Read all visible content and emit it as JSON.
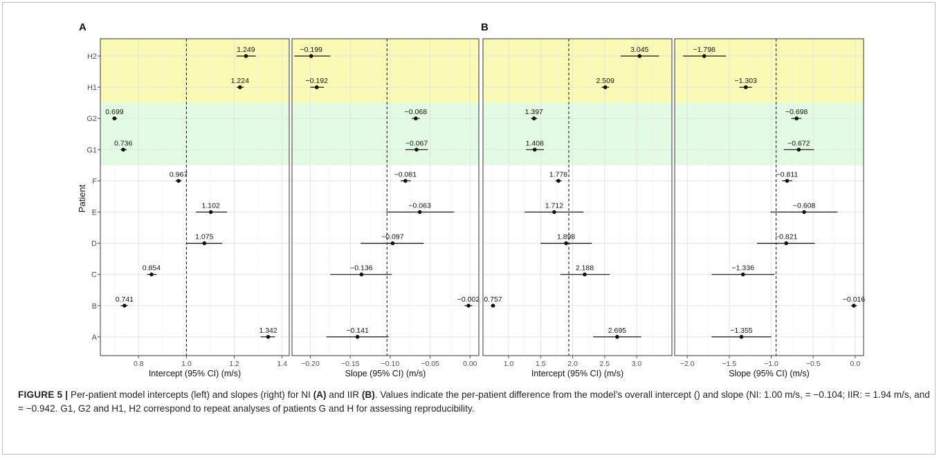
{
  "panel_letters": [
    "A",
    "B"
  ],
  "y_axis_title": "Patient",
  "patients": [
    "H2",
    "H1",
    "G2",
    "G1",
    "F",
    "E",
    "D",
    "C",
    "B",
    "A"
  ],
  "colors": {
    "yellow_band": "#fafab4",
    "green_band": "#e2fbe2",
    "point": "#111111",
    "grid": "#ebebeb"
  },
  "caption": {
    "label": "FIGURE 5 |",
    "part1": " Per-patient model intercepts (left) and slopes (right) for NI ",
    "a": "(A)",
    "part2": " and IIR ",
    "b": "(B)",
    "part3": ". Values indicate the per-patient difference from the model’s overall intercept () and slope (NI: 1.00 m/s, = −0.104; IIR: = 1.94 m/s, and = −0.942. G1, G2 and H1, H2 correspond to repeat analyses of patients G and H for assessing reproducibility."
  },
  "chart_data": [
    {
      "type": "scatter",
      "panel": "A",
      "xlabel": "Intercept (95% CI) (m/s)",
      "xlim": [
        0.64,
        1.43
      ],
      "xticks": [
        0.8,
        1.0,
        1.2,
        1.4
      ],
      "xtick_labels": [
        "0.8",
        "1.0",
        "1.2",
        "1.4"
      ],
      "reference_line": 1.0,
      "points": [
        {
          "patient": "H2",
          "value": 1.249,
          "lo": 1.21,
          "hi": 1.29,
          "label": "1.249"
        },
        {
          "patient": "H1",
          "value": 1.224,
          "lo": 1.21,
          "hi": 1.24,
          "label": "1.224"
        },
        {
          "patient": "G2",
          "value": 0.699,
          "lo": 0.69,
          "hi": 0.71,
          "label": "0.699"
        },
        {
          "patient": "G1",
          "value": 0.736,
          "lo": 0.725,
          "hi": 0.75,
          "label": "0.736"
        },
        {
          "patient": "F",
          "value": 0.967,
          "lo": 0.955,
          "hi": 0.98,
          "label": "0.967"
        },
        {
          "patient": "E",
          "value": 1.102,
          "lo": 1.04,
          "hi": 1.17,
          "label": "1.102"
        },
        {
          "patient": "D",
          "value": 1.075,
          "lo": 1.0,
          "hi": 1.15,
          "label": "1.075"
        },
        {
          "patient": "C",
          "value": 0.854,
          "lo": 0.835,
          "hi": 0.875,
          "label": "0.854"
        },
        {
          "patient": "B",
          "value": 0.741,
          "lo": 0.725,
          "hi": 0.755,
          "label": "0.741"
        },
        {
          "patient": "A",
          "value": 1.342,
          "lo": 1.31,
          "hi": 1.37,
          "label": "1.342"
        }
      ]
    },
    {
      "type": "scatter",
      "panel": "A",
      "xlabel": "Slope (95% CI) (m/s)",
      "xlim": [
        -0.223,
        0.011
      ],
      "xticks": [
        -0.2,
        -0.15,
        -0.1,
        -0.05,
        0.0
      ],
      "xtick_labels": [
        "−0.20",
        "−0.15",
        "−0.10",
        "−0.05",
        "0.00"
      ],
      "reference_line": -0.104,
      "points": [
        {
          "patient": "H2",
          "value": -0.199,
          "lo": -0.22,
          "hi": -0.175,
          "label": "−0.199"
        },
        {
          "patient": "H1",
          "value": -0.192,
          "lo": -0.2,
          "hi": -0.183,
          "label": "−0.192"
        },
        {
          "patient": "G2",
          "value": -0.068,
          "lo": -0.073,
          "hi": -0.063,
          "label": "−0.068"
        },
        {
          "patient": "G1",
          "value": -0.067,
          "lo": -0.081,
          "hi": -0.053,
          "label": "−0.067"
        },
        {
          "patient": "F",
          "value": -0.081,
          "lo": -0.087,
          "hi": -0.074,
          "label": "−0.081"
        },
        {
          "patient": "E",
          "value": -0.063,
          "lo": -0.105,
          "hi": -0.02,
          "label": "−0.063"
        },
        {
          "patient": "D",
          "value": -0.097,
          "lo": -0.137,
          "hi": -0.058,
          "label": "−0.097"
        },
        {
          "patient": "C",
          "value": -0.136,
          "lo": -0.175,
          "hi": -0.098,
          "label": "−0.136"
        },
        {
          "patient": "B",
          "value": -0.002,
          "lo": -0.007,
          "hi": 0.003,
          "label": "−0.002"
        },
        {
          "patient": "A",
          "value": -0.141,
          "lo": -0.18,
          "hi": -0.102,
          "label": "−0.141"
        }
      ]
    },
    {
      "type": "scatter",
      "panel": "B",
      "xlabel": "Intercept (95% CI) (m/s)",
      "xlim": [
        0.6,
        3.55
      ],
      "xticks": [
        1.0,
        1.5,
        2.0,
        2.5,
        3.0
      ],
      "xtick_labels": [
        "1.0",
        "1.5",
        "2.0",
        "2.5",
        "3.0"
      ],
      "reference_line": 1.94,
      "points": [
        {
          "patient": "H2",
          "value": 3.045,
          "lo": 2.75,
          "hi": 3.35,
          "label": "3.045"
        },
        {
          "patient": "H1",
          "value": 2.509,
          "lo": 2.45,
          "hi": 2.57,
          "label": "2.509"
        },
        {
          "patient": "G2",
          "value": 1.397,
          "lo": 1.35,
          "hi": 1.45,
          "label": "1.397"
        },
        {
          "patient": "G1",
          "value": 1.408,
          "lo": 1.27,
          "hi": 1.55,
          "label": "1.408"
        },
        {
          "patient": "F",
          "value": 1.778,
          "lo": 1.73,
          "hi": 1.83,
          "label": "1.778"
        },
        {
          "patient": "E",
          "value": 1.712,
          "lo": 1.25,
          "hi": 2.17,
          "label": "1.712"
        },
        {
          "patient": "D",
          "value": 1.898,
          "lo": 1.5,
          "hi": 2.3,
          "label": "1.898"
        },
        {
          "patient": "C",
          "value": 2.188,
          "lo": 1.81,
          "hi": 2.58,
          "label": "2.188"
        },
        {
          "patient": "B",
          "value": 0.757,
          "lo": 0.72,
          "hi": 0.79,
          "label": "0.757"
        },
        {
          "patient": "A",
          "value": 2.695,
          "lo": 2.32,
          "hi": 3.07,
          "label": "2.695"
        }
      ]
    },
    {
      "type": "scatter",
      "panel": "B",
      "xlabel": "Slope (95% CI) (m/s)",
      "xlim": [
        -2.15,
        0.1
      ],
      "xticks": [
        -2.0,
        -1.5,
        -1.0,
        -0.5,
        0.0
      ],
      "xtick_labels": [
        "−2.0",
        "−1.5",
        "−1.0",
        "−0.5",
        "0.0"
      ],
      "reference_line": -0.942,
      "points": [
        {
          "patient": "H2",
          "value": -1.798,
          "lo": -2.05,
          "hi": -1.54,
          "label": "−1.798"
        },
        {
          "patient": "H1",
          "value": -1.303,
          "lo": -1.38,
          "hi": -1.23,
          "label": "−1.303"
        },
        {
          "patient": "G2",
          "value": -0.698,
          "lo": -0.76,
          "hi": -0.64,
          "label": "−0.698"
        },
        {
          "patient": "G1",
          "value": -0.672,
          "lo": -0.85,
          "hi": -0.49,
          "label": "−0.672"
        },
        {
          "patient": "F",
          "value": -0.811,
          "lo": -0.87,
          "hi": -0.75,
          "label": "−0.811"
        },
        {
          "patient": "E",
          "value": -0.608,
          "lo": -1.01,
          "hi": -0.21,
          "label": "−0.608"
        },
        {
          "patient": "D",
          "value": -0.821,
          "lo": -1.17,
          "hi": -0.48,
          "label": "−0.821"
        },
        {
          "patient": "C",
          "value": -1.336,
          "lo": -1.71,
          "hi": -0.96,
          "label": "−1.336"
        },
        {
          "patient": "B",
          "value": -0.016,
          "lo": -0.05,
          "hi": 0.02,
          "label": "−0.016"
        },
        {
          "patient": "A",
          "value": -1.355,
          "lo": -1.71,
          "hi": -1.0,
          "label": "−1.355"
        }
      ]
    }
  ]
}
